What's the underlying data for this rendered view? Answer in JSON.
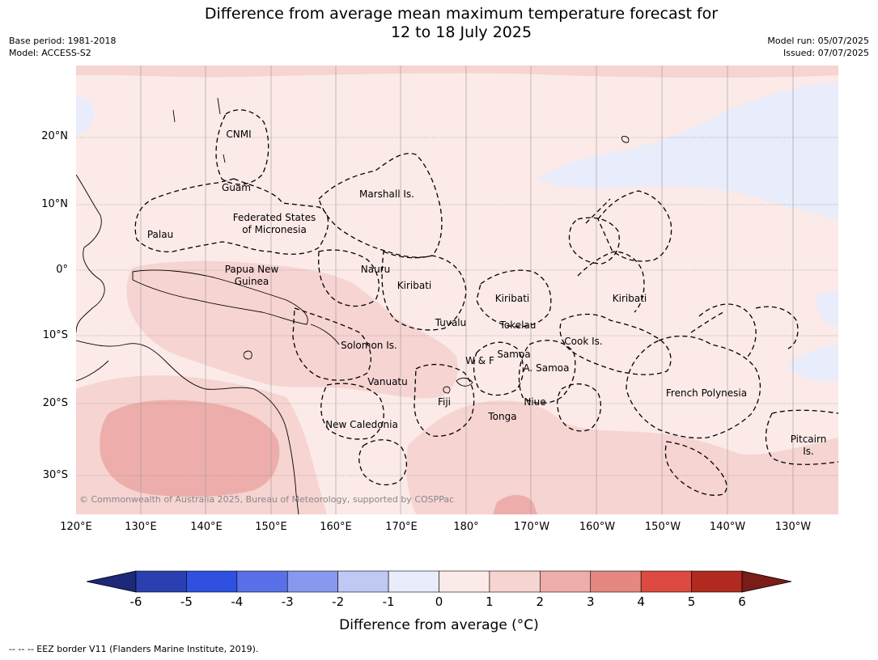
{
  "header": {
    "title_line1": "Difference from average mean maximum temperature forecast for",
    "title_line2": "12 to 18 July 2025",
    "base_period": "Base period: 1981-2018",
    "model": "Model: ACCESS-S2",
    "model_run": "Model run: 05/07/2025",
    "issued": "Issued: 07/07/2025"
  },
  "map": {
    "lat_labels": [
      "20°N",
      "10°N",
      "0°",
      "10°S",
      "20°S",
      "30°S"
    ],
    "lon_labels": [
      "120°E",
      "130°E",
      "140°E",
      "150°E",
      "160°E",
      "170°E",
      "180°",
      "170°W",
      "160°W",
      "150°W",
      "140°W",
      "130°W"
    ],
    "regions": {
      "cnmi": "CNMI",
      "guam": "Guam",
      "marshall": "Marshall Is.",
      "fsm_1": "Federated States",
      "fsm_2": "of Micronesia",
      "palau": "Palau",
      "png_1": "Papua New",
      "png_2": "Guinea",
      "nauru": "Nauru",
      "kiribati_w": "Kiribati",
      "kiribati_c": "Kiribati",
      "kiribati_e": "Kiribati",
      "tuvalu": "Tuvalu",
      "tokelau": "Tokelau",
      "cook": "Cook Is.",
      "solomon": "Solomon Is.",
      "wf": "W & F",
      "samoa": "Samoa",
      "asamoa": "A. Samoa",
      "vanuatu": "Vanuatu",
      "fiji": "Fiji",
      "niue": "Niue",
      "tonga": "Tonga",
      "french_polynesia": "French Polynesia",
      "new_caledonia": "New Caledonia",
      "pitcairn_1": "Pitcairn",
      "pitcairn_2": "Is."
    },
    "copyright": "© Commonwealth of Australia 2025, Bureau of Meteorology, supported by COSPPac"
  },
  "colorbar": {
    "ticks": [
      "-6",
      "-5",
      "-4",
      "-3",
      "-2",
      "-1",
      "0",
      "1",
      "2",
      "3",
      "4",
      "5",
      "6"
    ],
    "colors": [
      "#2a3fb0",
      "#3050e0",
      "#5a70e8",
      "#8898ee",
      "#c0c8f4",
      "#e8ecfb",
      "#fbeae8",
      "#f6d4d2",
      "#edaeab",
      "#e58882",
      "#dc4a40",
      "#b02a20"
    ],
    "under_color": "#1c2878",
    "over_color": "#7a1c18",
    "title": "Difference from average (°C)"
  },
  "footer": {
    "note": "--  --  -- EEZ border V11 (Flanders Marine Institute, 2019)."
  }
}
